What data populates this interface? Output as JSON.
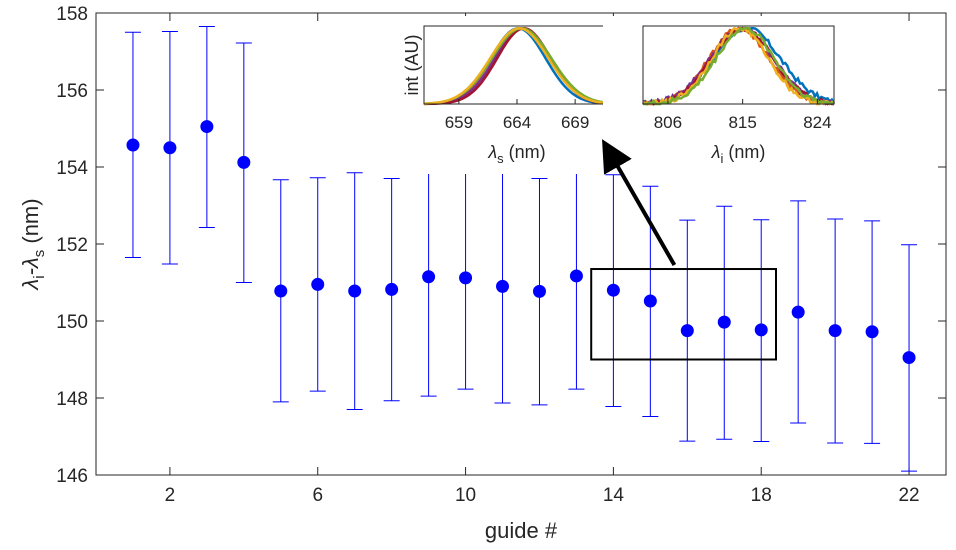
{
  "chart_data": {
    "type": "scatter",
    "title": "",
    "xlabel": "guide #",
    "ylabel": {
      "main": "λ",
      "sub1": "i",
      "mid": "-λ",
      "sub2": "s",
      "unit": " (nm)"
    },
    "xlim": [
      0,
      23
    ],
    "ylim": [
      146,
      158
    ],
    "xticks": [
      2,
      6,
      10,
      14,
      18,
      22
    ],
    "yticks": [
      146,
      148,
      150,
      152,
      154,
      156,
      158
    ],
    "grid": false,
    "series": [
      {
        "color": "#0000ff",
        "marker": "filled-circle",
        "errorbars": true,
        "points": [
          {
            "x": 1,
            "y": 154.57,
            "lo": 151.65,
            "hi": 157.5
          },
          {
            "x": 2,
            "y": 154.5,
            "lo": 151.48,
            "hi": 157.52
          },
          {
            "x": 3,
            "y": 155.05,
            "lo": 152.43,
            "hi": 157.65
          },
          {
            "x": 4,
            "y": 154.12,
            "lo": 151.0,
            "hi": 157.22
          },
          {
            "x": 5,
            "y": 150.78,
            "lo": 147.9,
            "hi": 153.67
          },
          {
            "x": 6,
            "y": 150.95,
            "lo": 148.18,
            "hi": 153.72
          },
          {
            "x": 7,
            "y": 150.78,
            "lo": 147.7,
            "hi": 153.85
          },
          {
            "x": 8,
            "y": 150.82,
            "lo": 147.93,
            "hi": 153.7
          },
          {
            "x": 9,
            "y": 151.15,
            "lo": 148.05,
            "hi": 154.23
          },
          {
            "x": 10,
            "y": 151.12,
            "lo": 148.23,
            "hi": 154.0
          },
          {
            "x": 11,
            "y": 150.9,
            "lo": 147.87,
            "hi": 153.92
          },
          {
            "x": 12,
            "y": 150.77,
            "lo": 147.82,
            "hi": 153.7
          },
          {
            "x": 13,
            "y": 151.17,
            "lo": 148.23,
            "hi": 154.08
          },
          {
            "x": 14,
            "y": 150.8,
            "lo": 147.78,
            "hi": 153.8
          },
          {
            "x": 15,
            "y": 150.52,
            "lo": 147.52,
            "hi": 153.5
          },
          {
            "x": 16,
            "y": 149.75,
            "lo": 146.88,
            "hi": 152.62
          },
          {
            "x": 17,
            "y": 149.97,
            "lo": 146.93,
            "hi": 152.98
          },
          {
            "x": 18,
            "y": 149.77,
            "lo": 146.87,
            "hi": 152.63
          },
          {
            "x": 19,
            "y": 150.23,
            "lo": 147.35,
            "hi": 153.12
          },
          {
            "x": 20,
            "y": 149.75,
            "lo": 146.83,
            "hi": 152.65
          },
          {
            "x": 21,
            "y": 149.72,
            "lo": 146.82,
            "hi": 152.6
          },
          {
            "x": 22,
            "y": 149.05,
            "lo": 146.1,
            "hi": 151.98
          }
        ]
      }
    ],
    "annotation": {
      "box": {
        "x": [
          13.4,
          18.4
        ],
        "y": [
          149.0,
          151.35
        ]
      },
      "arrow_from": {
        "x": 15.65,
        "y": 151.35
      },
      "arrow_to": "inset-signal"
    },
    "insets": [
      {
        "id": "signal",
        "ylabel": "int (AU)",
        "xlabel": {
          "main": "λ",
          "sub": "s",
          "unit": " (nm)"
        },
        "xlim": [
          656,
          672
        ],
        "xticks": [
          659,
          664,
          669
        ],
        "lines": [
          {
            "color": "#0072bd",
            "center": 664.1,
            "sigma": 2.35,
            "noise": 0.0
          },
          {
            "color": "#d95319",
            "center": 664.3,
            "sigma": 2.45,
            "noise": 0.0
          },
          {
            "color": "#7e2f8e",
            "center": 664.5,
            "sigma": 2.4,
            "noise": 0.0
          },
          {
            "color": "#a2142f",
            "center": 664.6,
            "sigma": 2.3,
            "noise": 0.0
          },
          {
            "color": "#77ac30",
            "center": 664.4,
            "sigma": 2.55,
            "noise": 0.0
          },
          {
            "color": "#edb120",
            "center": 664.2,
            "sigma": 2.5,
            "noise": 0.0
          }
        ]
      },
      {
        "id": "idler",
        "ylabel": "",
        "xlabel": {
          "main": "λ",
          "sub": "i",
          "unit": " (nm)"
        },
        "xlim": [
          803,
          826
        ],
        "xticks": [
          806,
          815,
          824
        ],
        "lines": [
          {
            "color": "#0072bd",
            "center": 815.5,
            "sigma": 4.0,
            "noise": 0.07
          },
          {
            "color": "#d95319",
            "center": 814.6,
            "sigma": 3.6,
            "noise": 0.07
          },
          {
            "color": "#7e2f8e",
            "center": 814.9,
            "sigma": 3.8,
            "noise": 0.06
          },
          {
            "color": "#a2142f",
            "center": 815.0,
            "sigma": 3.7,
            "noise": 0.06
          },
          {
            "color": "#edb120",
            "center": 814.7,
            "sigma": 3.4,
            "noise": 0.07
          },
          {
            "color": "#77ac30",
            "center": 815.3,
            "sigma": 3.5,
            "noise": 0.07
          }
        ]
      }
    ]
  }
}
